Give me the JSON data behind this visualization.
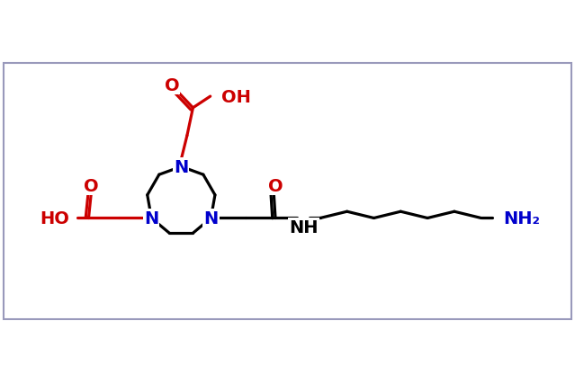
{
  "bg_color": "#ffffff",
  "border_color": "#9999bb",
  "N_color": "#0000cc",
  "acid_color": "#cc0000",
  "black": "#000000",
  "line_width": 2.3,
  "font_size": 14,
  "xlim": [
    -5.5,
    12.0
  ],
  "ylim": [
    -3.5,
    4.5
  ]
}
